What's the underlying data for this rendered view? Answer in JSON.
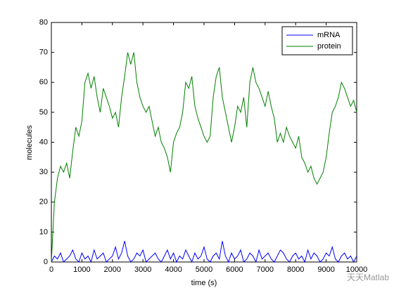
{
  "chart_data": {
    "type": "line",
    "xlabel": "time (s)",
    "ylabel": "molecules",
    "x": [
      0,
      100,
      200,
      300,
      400,
      500,
      600,
      700,
      800,
      900,
      1000,
      1100,
      1200,
      1300,
      1400,
      1500,
      1600,
      1700,
      1800,
      1900,
      2000,
      2100,
      2200,
      2300,
      2400,
      2500,
      2600,
      2700,
      2800,
      2900,
      3000,
      3100,
      3200,
      3300,
      3400,
      3500,
      3600,
      3700,
      3800,
      3900,
      4000,
      4100,
      4200,
      4300,
      4400,
      4500,
      4600,
      4700,
      4800,
      4900,
      5000,
      5100,
      5200,
      5300,
      5400,
      5500,
      5600,
      5700,
      5800,
      5900,
      6000,
      6100,
      6200,
      6300,
      6400,
      6500,
      6600,
      6700,
      6800,
      6900,
      7000,
      7100,
      7200,
      7300,
      7400,
      7500,
      7600,
      7700,
      7800,
      7900,
      8000,
      8100,
      8200,
      8300,
      8400,
      8500,
      8600,
      8700,
      8800,
      8900,
      9000,
      9100,
      9200,
      9300,
      9400,
      9500,
      9600,
      9700,
      9800,
      9900,
      10000
    ],
    "series": [
      {
        "name": "mRNA",
        "color": "#0000ff",
        "values": [
          0,
          2,
          1,
          3,
          0,
          1,
          2,
          4,
          1,
          0,
          3,
          1,
          2,
          0,
          4,
          1,
          2,
          3,
          0,
          1,
          2,
          5,
          1,
          3,
          7,
          2,
          0,
          1,
          3,
          2,
          4,
          0,
          1,
          2,
          3,
          1,
          0,
          2,
          4,
          1,
          3,
          0,
          2,
          1,
          4,
          2,
          0,
          3,
          1,
          2,
          5,
          1,
          0,
          2,
          3,
          1,
          7,
          2,
          0,
          3,
          1,
          2,
          4,
          0,
          1,
          3,
          2,
          0,
          4,
          1,
          2,
          3,
          1,
          0,
          2,
          4,
          3,
          1,
          0,
          2,
          3,
          1,
          2,
          0,
          4,
          1,
          3,
          2,
          0,
          1,
          3,
          2,
          5,
          1,
          0,
          2,
          3,
          1,
          2,
          0,
          2
        ]
      },
      {
        "name": "protein",
        "color": "#008000",
        "values": [
          0,
          20,
          28,
          32,
          30,
          33,
          28,
          37,
          45,
          42,
          47,
          60,
          63,
          58,
          62,
          55,
          50,
          58,
          55,
          52,
          48,
          50,
          45,
          55,
          62,
          70,
          66,
          70,
          60,
          55,
          52,
          50,
          52,
          47,
          42,
          45,
          40,
          38,
          35,
          30,
          40,
          43,
          45,
          50,
          60,
          58,
          62,
          52,
          48,
          45,
          42,
          40,
          42,
          55,
          62,
          65,
          55,
          50,
          45,
          40,
          45,
          52,
          50,
          55,
          45,
          60,
          65,
          60,
          58,
          55,
          52,
          57,
          52,
          48,
          40,
          43,
          40,
          45,
          42,
          40,
          38,
          42,
          35,
          33,
          30,
          32,
          28,
          26,
          28,
          30,
          35,
          43,
          50,
          52,
          55,
          60,
          58,
          55,
          52,
          54,
          50
        ]
      }
    ],
    "xlim": [
      0,
      10000
    ],
    "xticks": [
      0,
      1000,
      2000,
      3000,
      4000,
      5000,
      6000,
      7000,
      8000,
      9000,
      10000
    ],
    "ylim": [
      0,
      80
    ],
    "yticks": [
      0,
      10,
      20,
      30,
      40,
      50,
      60,
      70,
      80
    ],
    "legend": "upper right",
    "watermark": "天天Matlab"
  }
}
